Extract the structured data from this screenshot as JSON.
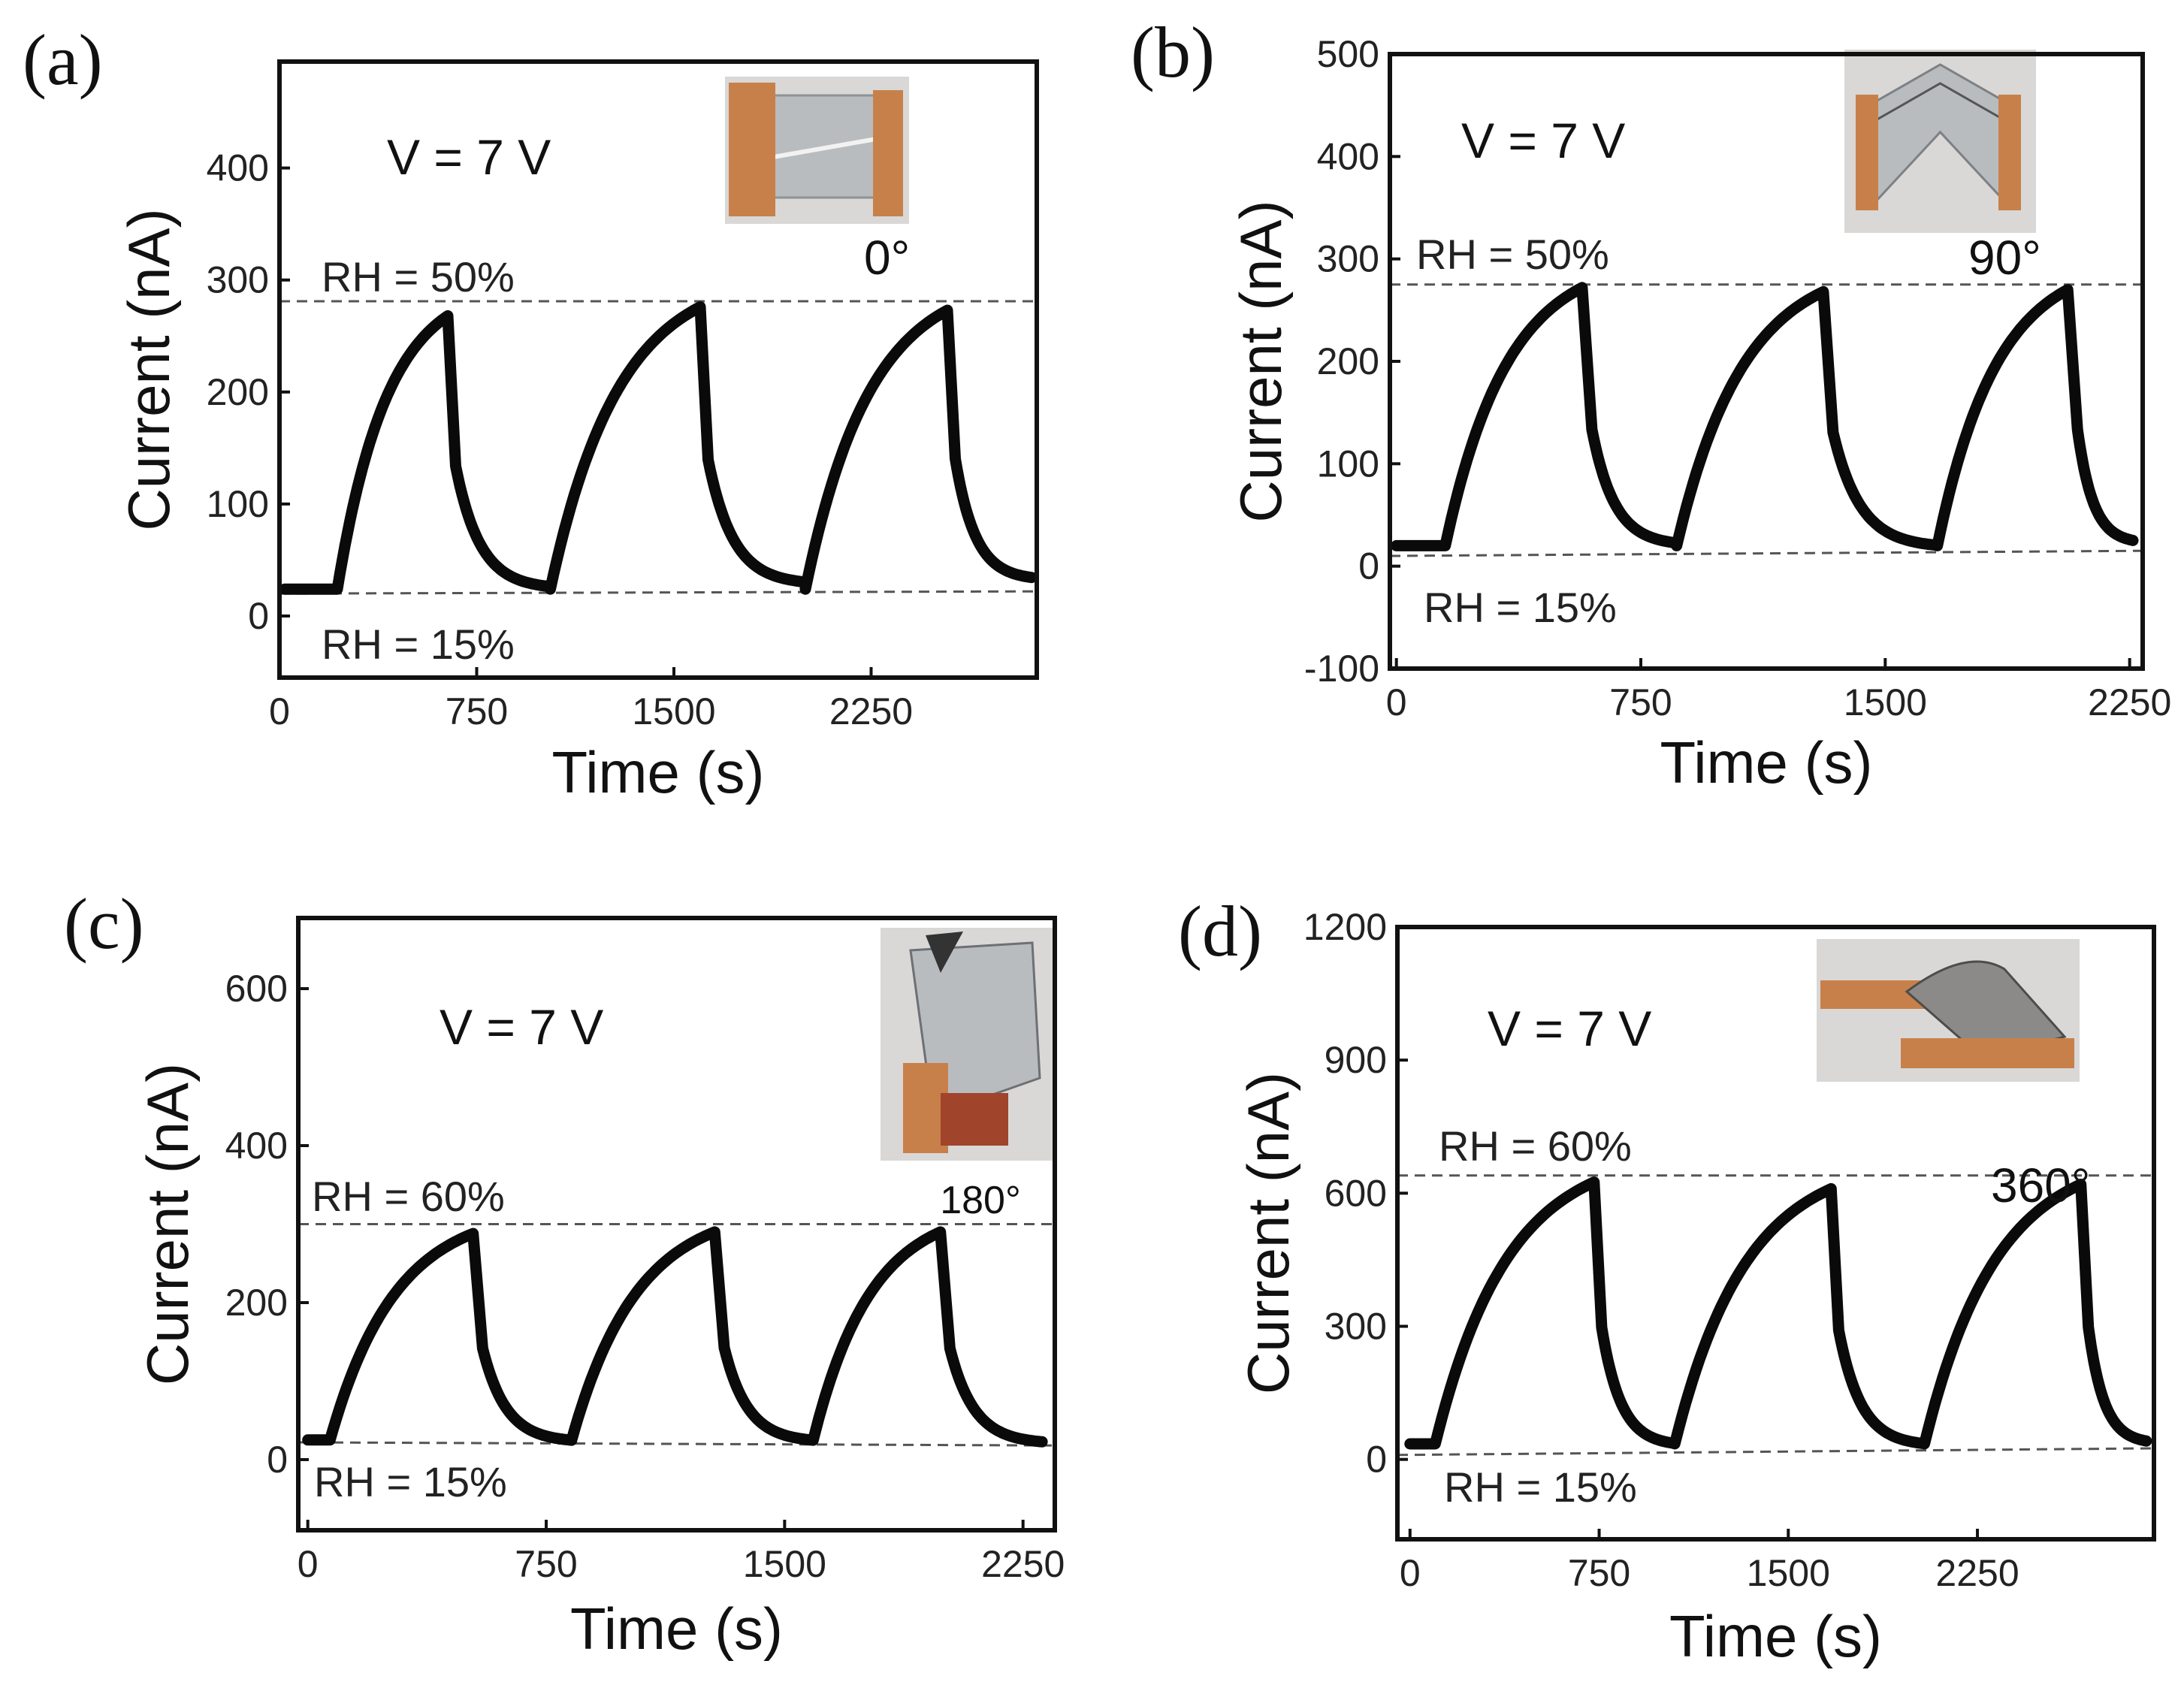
{
  "chart_data": [
    {
      "panel": "(a)",
      "type": "line",
      "xlabel": "Time (s)",
      "ylabel": "Current (nA)",
      "xlim": [
        0,
        2880
      ],
      "ylim": [
        -55,
        495
      ],
      "xticks": [
        0,
        750,
        1500,
        2250
      ],
      "yticks": [
        0,
        100,
        200,
        300,
        400
      ],
      "voltage_label": "V = 7 V",
      "angle_label": "0°",
      "inset_icon": "flat-leaf-sample-photo",
      "ref_high": {
        "label": "RH = 50%",
        "y0": 281,
        "y1": 281
      },
      "ref_low": {
        "label": "RH = 15%",
        "y0": 20,
        "y1": 22
      },
      "series": [
        {
          "baseline": 24,
          "cycles": [
            {
              "t_on": 220,
              "t_off": 640,
              "t_next": 1030,
              "peak": 268,
              "tail": 24
            },
            {
              "t_on": 1030,
              "t_off": 1600,
              "t_next": 2000,
              "peak": 276,
              "tail": 28
            },
            {
              "t_on": 2000,
              "t_off": 2540,
              "t_next": 2860,
              "peak": 273,
              "tail": 32
            }
          ]
        }
      ]
    },
    {
      "panel": "(b)",
      "type": "line",
      "xlabel": "Time (s)",
      "ylabel": "Current (nA)",
      "xlim": [
        -20,
        2290
      ],
      "ylim": [
        -100,
        500
      ],
      "xticks": [
        0,
        750,
        1500,
        2250
      ],
      "yticks": [
        -100,
        0,
        100,
        200,
        300,
        400,
        500
      ],
      "voltage_label": "V = 7 V",
      "angle_label": "90°",
      "inset_icon": "bent-leaf-sample-photo",
      "ref_high": {
        "label": "RH = 50%",
        "y0": 275,
        "y1": 275
      },
      "ref_low": {
        "label": "RH = 15%",
        "y0": 10,
        "y1": 15
      },
      "series": [
        {
          "baseline": 20,
          "cycles": [
            {
              "t_on": 150,
              "t_off": 570,
              "t_next": 860,
              "peak": 272,
              "tail": 20
            },
            {
              "t_on": 860,
              "t_off": 1310,
              "t_next": 1660,
              "peak": 268,
              "tail": 18
            },
            {
              "t_on": 1660,
              "t_off": 2060,
              "t_next": 2260,
              "peak": 270,
              "tail": 22
            }
          ]
        }
      ]
    },
    {
      "panel": "(c)",
      "type": "line",
      "xlabel": "Time (s)",
      "ylabel": "Current (nA)",
      "xlim": [
        -30,
        2350
      ],
      "ylim": [
        -90,
        690
      ],
      "xticks": [
        0,
        750,
        1500,
        2250
      ],
      "yticks": [
        0,
        200,
        400,
        600
      ],
      "voltage_label": "V = 7 V",
      "angle_label": "180°",
      "inset_icon": "folded-leaf-sample-photo",
      "ref_high": {
        "label": "RH = 60%",
        "y0": 300,
        "y1": 300
      },
      "ref_low": {
        "label": "RH = 15%",
        "y0": 22,
        "y1": 18
      },
      "series": [
        {
          "baseline": 25,
          "cycles": [
            {
              "t_on": 70,
              "t_off": 520,
              "t_next": 830,
              "peak": 288,
              "tail": 22
            },
            {
              "t_on": 830,
              "t_off": 1280,
              "t_next": 1590,
              "peak": 290,
              "tail": 22
            },
            {
              "t_on": 1590,
              "t_off": 1990,
              "t_next": 2310,
              "peak": 290,
              "tail": 20
            }
          ]
        }
      ]
    },
    {
      "panel": "(d)",
      "type": "line",
      "xlabel": "Time (s)",
      "ylabel": "Current (nA)",
      "xlim": [
        -50,
        2950
      ],
      "ylim": [
        -180,
        1200
      ],
      "xticks": [
        0,
        750,
        1500,
        2250
      ],
      "yticks": [
        0,
        300,
        600,
        900,
        1200
      ],
      "voltage_label": "V = 7 V",
      "angle_label": "360°",
      "inset_icon": "twisted-leaf-sample-photo",
      "ref_high": {
        "label": "RH = 60%",
        "y0": 640,
        "y1": 640
      },
      "ref_low": {
        "label": "RH = 15%",
        "y0": 10,
        "y1": 25
      },
      "series": [
        {
          "baseline": 35,
          "cycles": [
            {
              "t_on": 100,
              "t_off": 730,
              "t_next": 1050,
              "peak": 625,
              "tail": 30
            },
            {
              "t_on": 1050,
              "t_off": 1670,
              "t_next": 2040,
              "peak": 610,
              "tail": 30
            },
            {
              "t_on": 2040,
              "t_off": 2660,
              "t_next": 2920,
              "peak": 620,
              "tail": 35
            }
          ]
        }
      ]
    }
  ],
  "colors": {
    "trace": "#0a0a0a",
    "reference_line": "#555555",
    "copper": "#c8804a",
    "leaf": "#b9bcbf"
  }
}
